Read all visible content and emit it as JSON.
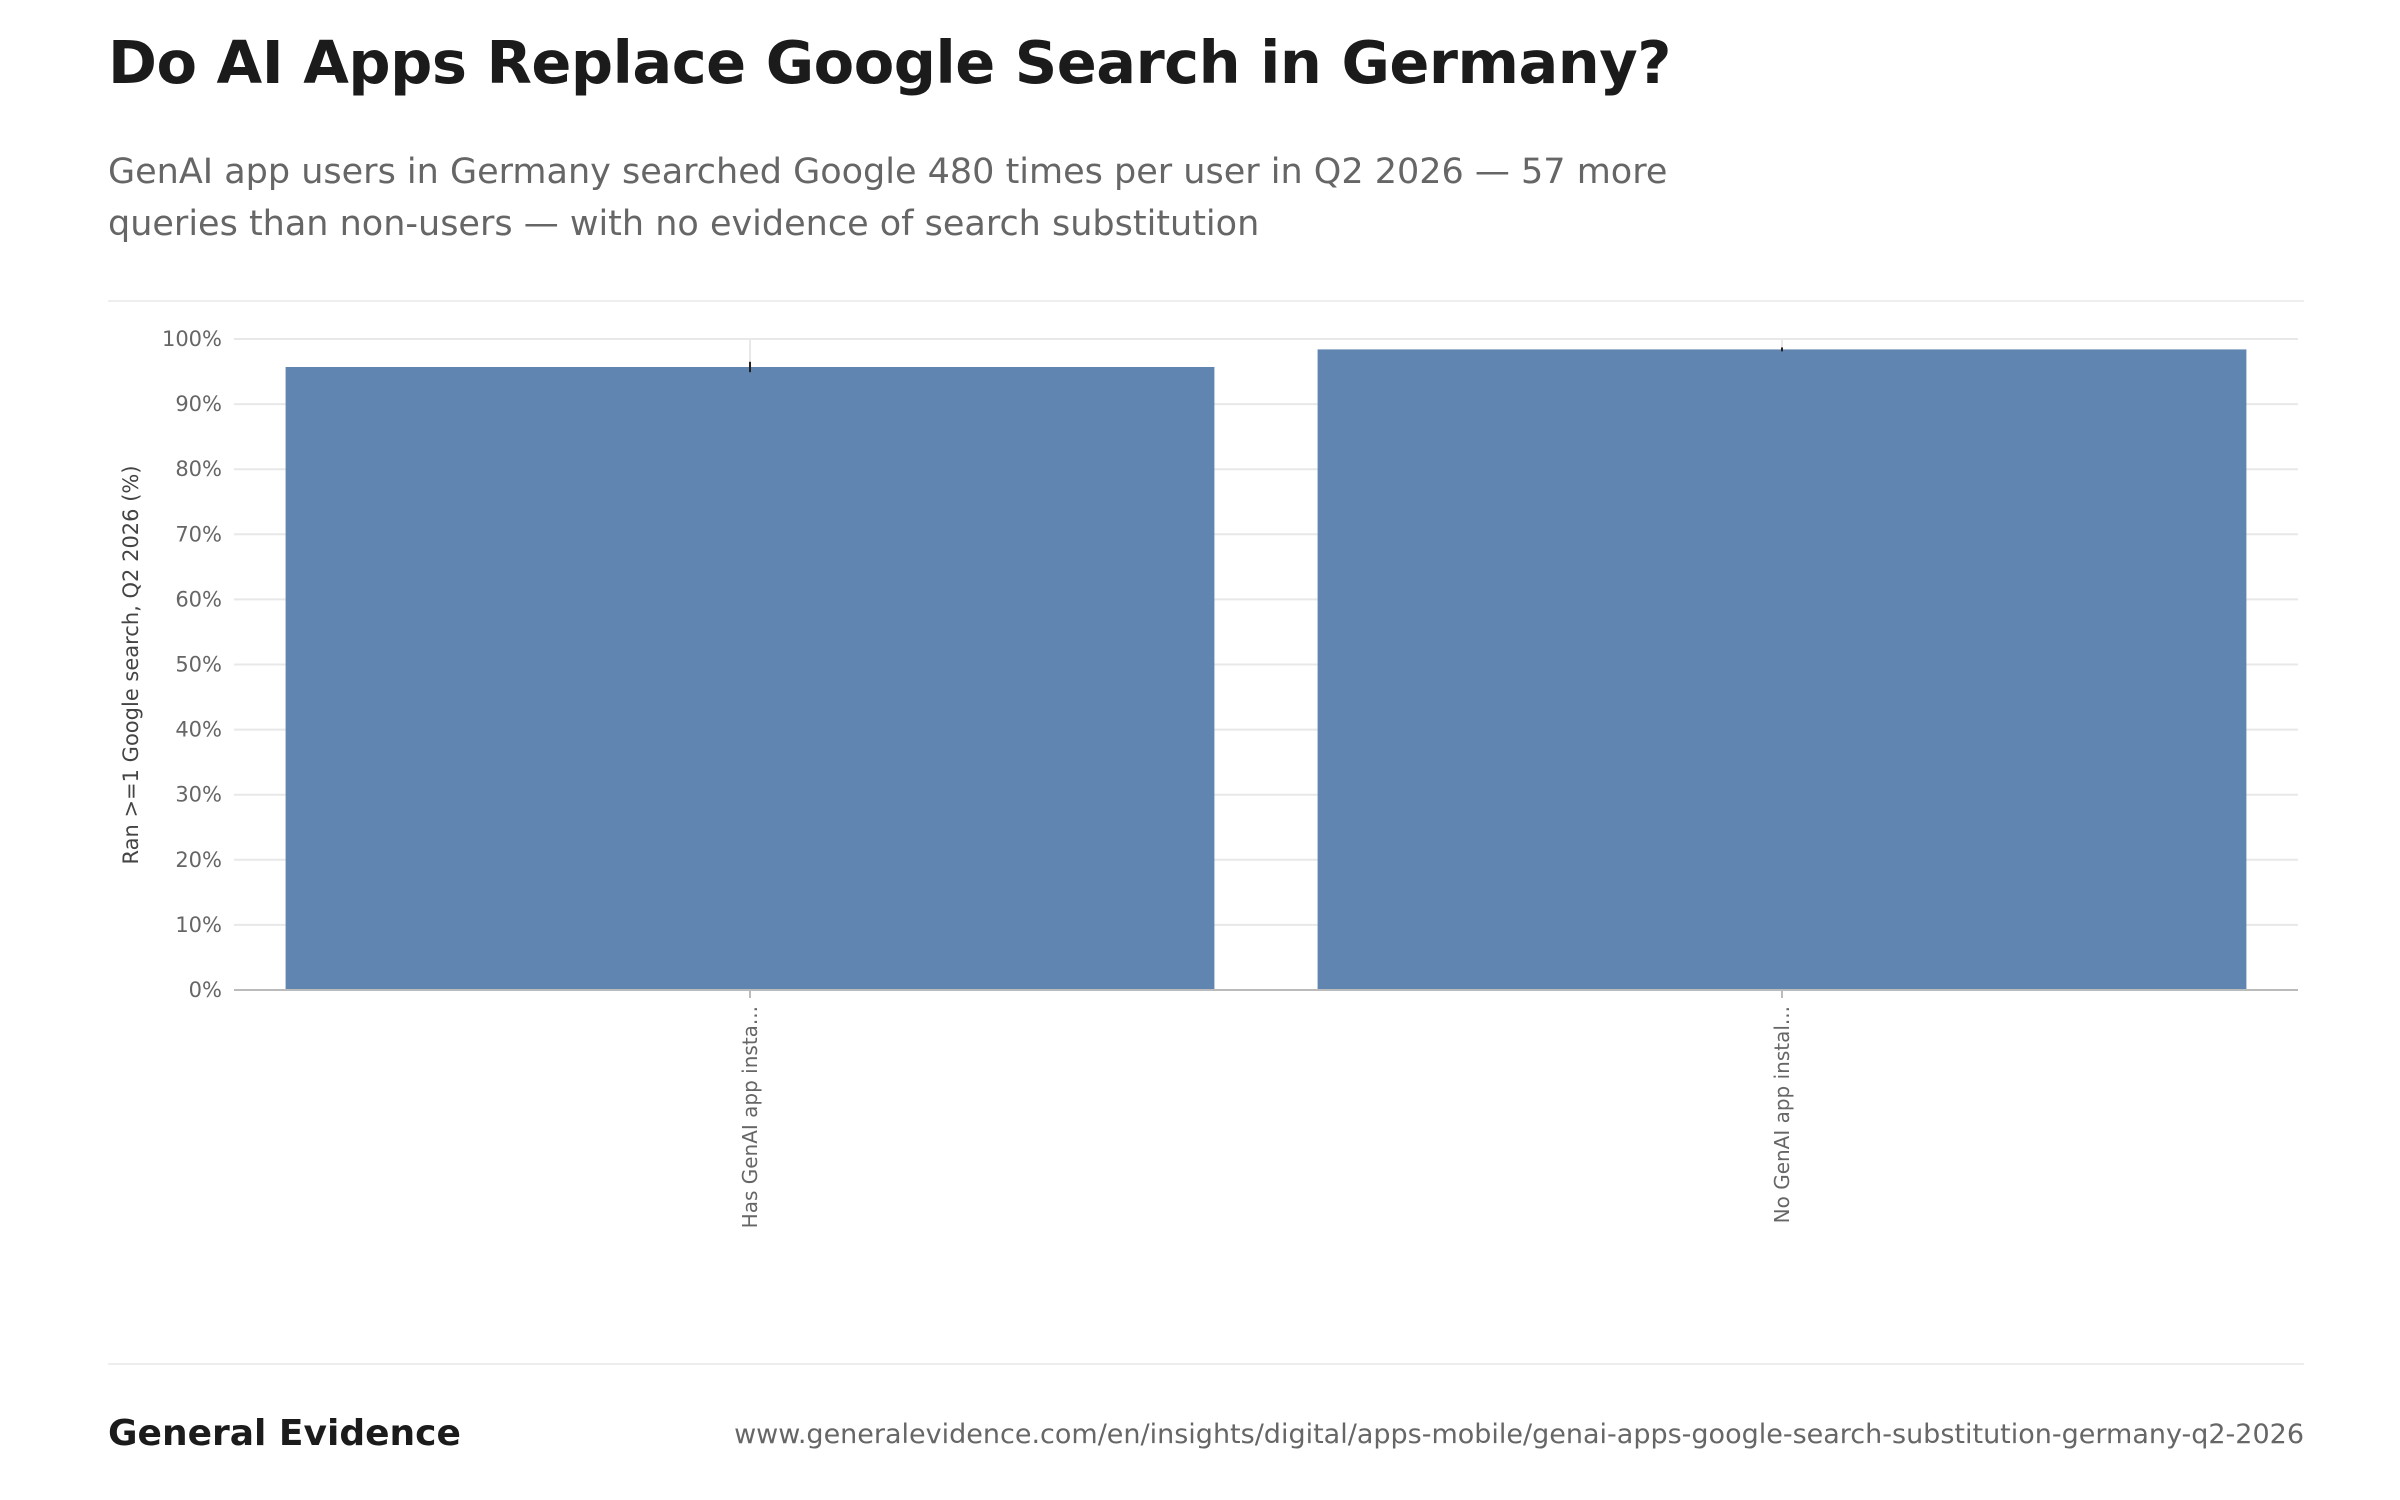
{
  "header": {
    "title": "Do AI Apps Replace Google Search in Germany?",
    "subtitle": "GenAI app users in Germany searched Google 480 times per user in Q2 2026 — 57 more queries than non-users — with no evidence of search substitution"
  },
  "footer": {
    "brand": "General Evidence",
    "source_url": "www.generalevidence.com/en/insights/digital/apps-mobile/genai-apps-google-search-substitution-germany-q2-2026"
  },
  "chart_data": {
    "type": "bar",
    "categories": [
      "Has GenAI app insta...",
      "No GenAI app instal..."
    ],
    "values": [
      95.7,
      98.4
    ],
    "error_bars": [
      [
        94.9,
        96.5
      ],
      [
        98.1,
        98.7
      ]
    ],
    "ylabel": "Ran >=1 Google search, Q2 2026 (%)",
    "xlabel": "",
    "ylim": [
      0,
      100
    ],
    "yticks": [
      0,
      10,
      20,
      30,
      40,
      50,
      60,
      70,
      80,
      90,
      100
    ],
    "ytick_labels": [
      "0%",
      "10%",
      "20%",
      "30%",
      "40%",
      "50%",
      "60%",
      "70%",
      "80%",
      "90%",
      "100%"
    ],
    "grid": true,
    "colors": {
      "bar": "#5f85b0",
      "grid": "#e8e8e8",
      "axis": "#bbbbbb",
      "error": "#222222",
      "tick_text": "#666666",
      "label_text": "#444444"
    }
  }
}
